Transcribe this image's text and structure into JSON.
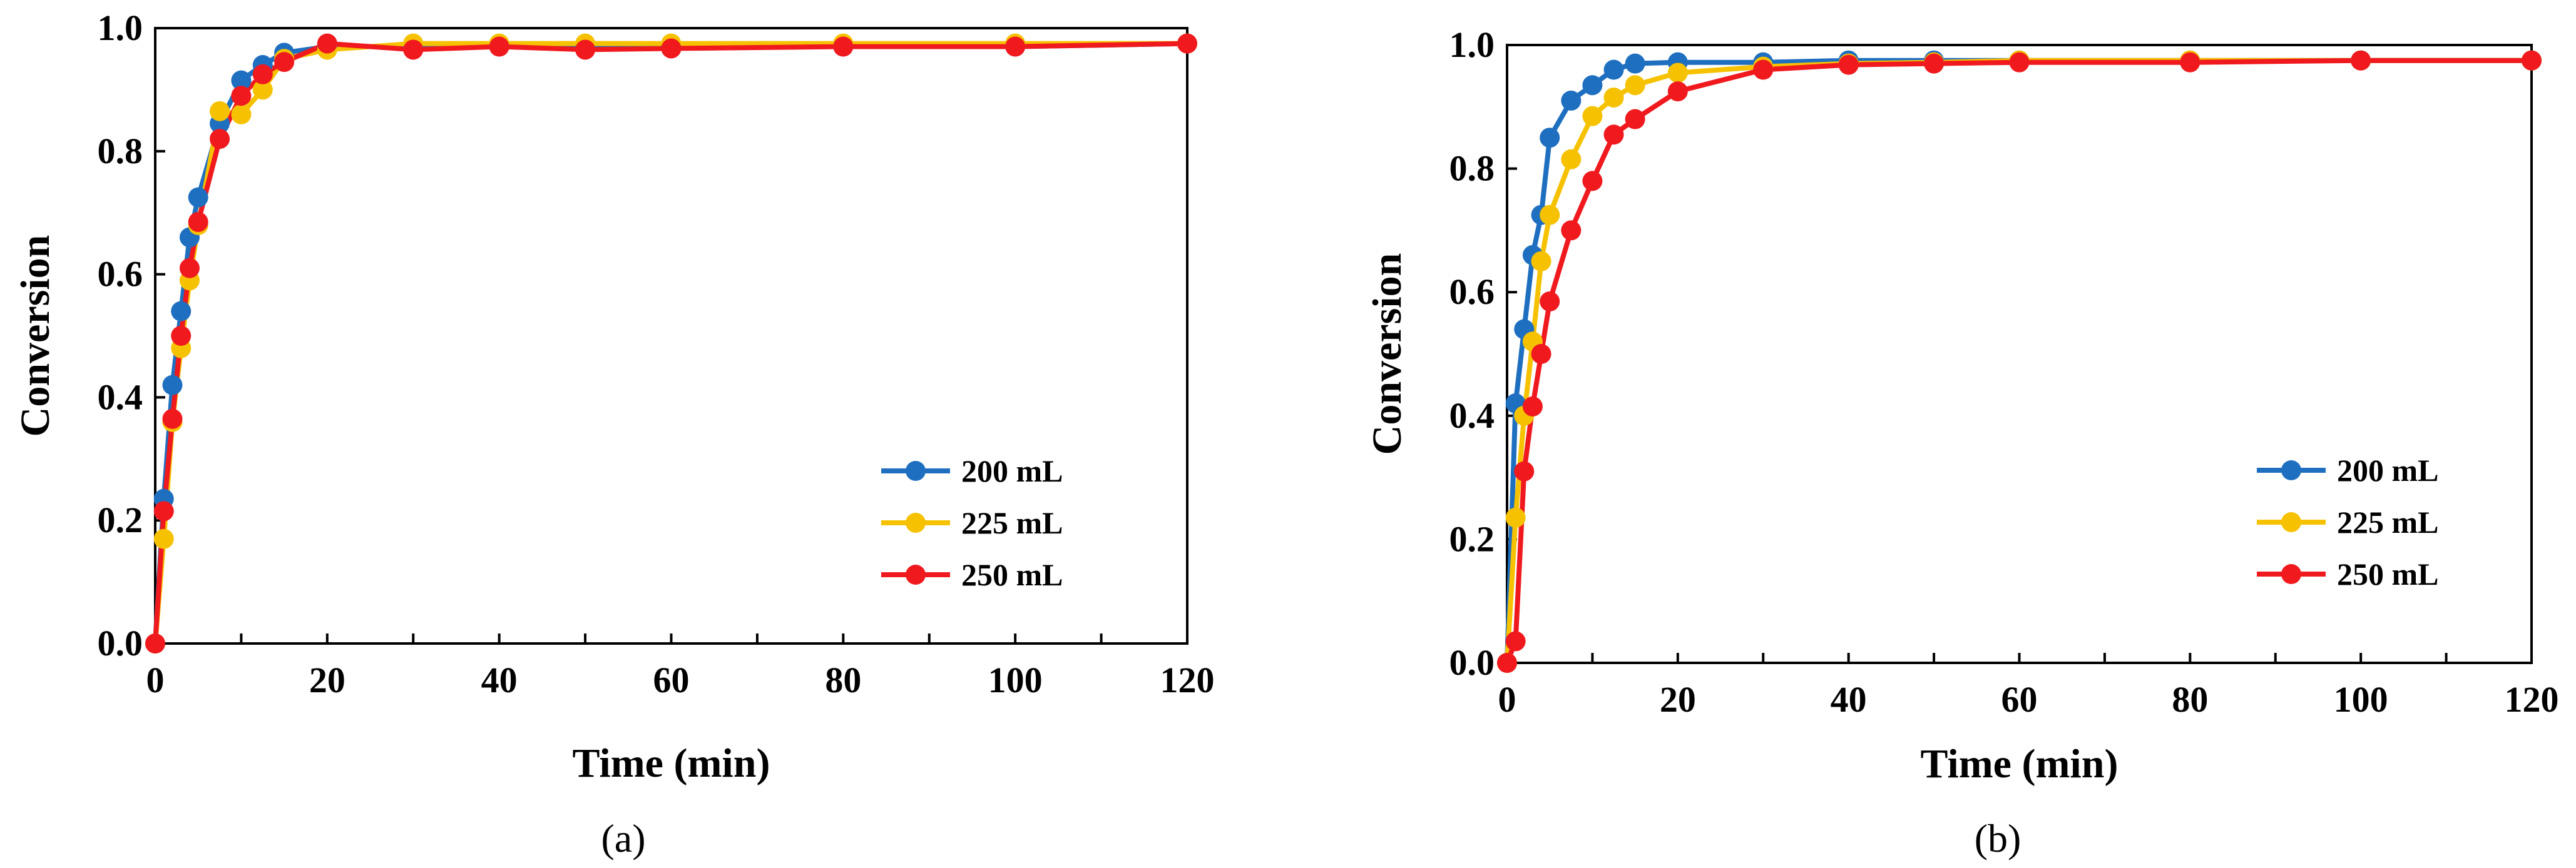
{
  "chart_data": [
    {
      "type": "line",
      "panel_label": "(a)",
      "xlabel": "Time (min)",
      "ylabel": "Conversion",
      "xlim": [
        0,
        120
      ],
      "ylim": [
        0,
        1.0
      ],
      "x_ticks": [
        0,
        20,
        40,
        60,
        80,
        100,
        120
      ],
      "y_ticks": [
        0.0,
        0.2,
        0.4,
        0.6,
        0.8,
        1.0
      ],
      "y_tick_labels": [
        "0.0",
        "0.2",
        "0.4",
        "0.6",
        "0.8",
        "1.0"
      ],
      "x_minor_step": 10,
      "legend_position": "lower-right",
      "series": [
        {
          "name": "200 mL",
          "color": "#1f6fc0",
          "x": [
            0,
            1,
            2,
            3,
            4,
            5,
            7.5,
            10,
            12.5,
            15,
            20,
            30,
            40,
            50,
            60,
            80,
            100,
            120
          ],
          "y": [
            0,
            0.235,
            0.42,
            0.54,
            0.66,
            0.725,
            0.845,
            0.915,
            0.94,
            0.96,
            0.97,
            0.97,
            0.97,
            0.97,
            0.97,
            0.97,
            0.97,
            0.975
          ]
        },
        {
          "name": "225 mL",
          "color": "#f6c200",
          "x": [
            0,
            1,
            2,
            3,
            4,
            5,
            7.5,
            10,
            12.5,
            15,
            20,
            30,
            40,
            50,
            60,
            80,
            100,
            120
          ],
          "y": [
            0,
            0.17,
            0.36,
            0.48,
            0.59,
            0.68,
            0.865,
            0.86,
            0.9,
            0.95,
            0.965,
            0.975,
            0.975,
            0.975,
            0.975,
            0.975,
            0.975,
            0.975
          ]
        },
        {
          "name": "250 mL",
          "color": "#f0191e",
          "x": [
            0,
            1,
            2,
            3,
            4,
            5,
            7.5,
            10,
            12.5,
            15,
            20,
            30,
            40,
            50,
            60,
            80,
            100,
            120
          ],
          "y": [
            0,
            0.215,
            0.365,
            0.5,
            0.61,
            0.685,
            0.82,
            0.89,
            0.925,
            0.945,
            0.975,
            0.965,
            0.97,
            0.965,
            0.967,
            0.97,
            0.97,
            0.975
          ]
        }
      ]
    },
    {
      "type": "line",
      "panel_label": "(b)",
      "xlabel": "Time (min)",
      "ylabel": "Conversion",
      "xlim": [
        0,
        120
      ],
      "ylim": [
        0,
        1.0
      ],
      "x_ticks": [
        0,
        20,
        40,
        60,
        80,
        100,
        120
      ],
      "y_ticks": [
        0.0,
        0.2,
        0.4,
        0.6,
        0.8,
        1.0
      ],
      "y_tick_labels": [
        "0.0",
        "0.2",
        "0.4",
        "0.6",
        "0.8",
        "1.0"
      ],
      "x_minor_step": 10,
      "legend_position": "lower-right",
      "series": [
        {
          "name": "200 mL",
          "color": "#1f6fc0",
          "x": [
            0,
            1,
            2,
            3,
            4,
            5,
            7.5,
            10,
            12.5,
            15,
            20,
            30,
            40,
            50,
            60,
            80,
            100,
            120
          ],
          "y": [
            0,
            0.42,
            0.54,
            0.66,
            0.725,
            0.85,
            0.91,
            0.935,
            0.96,
            0.97,
            0.972,
            0.972,
            0.975,
            0.975,
            0.975,
            0.975,
            0.975,
            0.975
          ]
        },
        {
          "name": "225 mL",
          "color": "#f6c200",
          "x": [
            0,
            1,
            2,
            3,
            4,
            5,
            7.5,
            10,
            12.5,
            15,
            20,
            30,
            40,
            50,
            60,
            80,
            100,
            120
          ],
          "y": [
            0,
            0.235,
            0.4,
            0.52,
            0.65,
            0.725,
            0.815,
            0.885,
            0.915,
            0.935,
            0.955,
            0.965,
            0.97,
            0.972,
            0.975,
            0.975,
            0.975,
            0.975
          ]
        },
        {
          "name": "250 mL",
          "color": "#f0191e",
          "x": [
            0,
            1,
            2,
            3,
            4,
            5,
            7.5,
            10,
            12.5,
            15,
            20,
            30,
            40,
            50,
            60,
            80,
            100,
            120
          ],
          "y": [
            0,
            0.035,
            0.31,
            0.415,
            0.5,
            0.585,
            0.7,
            0.78,
            0.855,
            0.88,
            0.925,
            0.96,
            0.968,
            0.97,
            0.972,
            0.972,
            0.975,
            0.975
          ]
        }
      ]
    }
  ]
}
